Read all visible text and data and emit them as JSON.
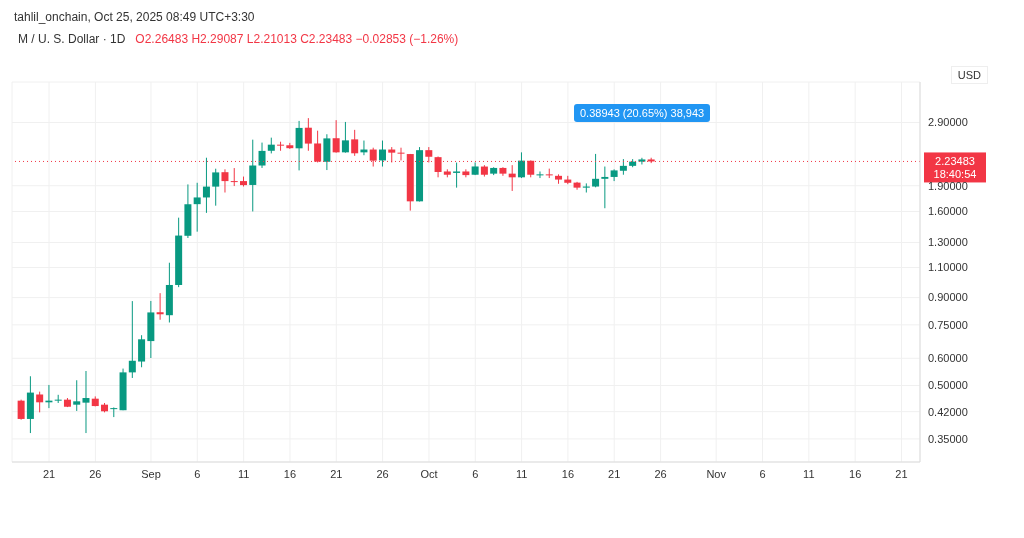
{
  "chart_data": {
    "type": "candlestick",
    "title": "M / U. S. Dollar · 1D",
    "subtitle": "O2.26483 H2.29087 L2.21013 C2.23483 −0.02853 (−1.26%)",
    "ylabel": "USD",
    "annotations": [
      "tahlil_onchain, Oct 25, 2025 08:49 UTC+3:30",
      "18:40:54",
      "0.38943 (20.65%) 38,943"
    ],
    "x": [
      "2025-08-18",
      "2025-08-19",
      "2025-08-20",
      "2025-08-21",
      "2025-08-22",
      "2025-08-23",
      "2025-08-24",
      "2025-08-25",
      "2025-08-26",
      "2025-08-27",
      "2025-08-28",
      "2025-08-29",
      "2025-08-30",
      "2025-08-31",
      "2025-09-01",
      "2025-09-02",
      "2025-09-03",
      "2025-09-04",
      "2025-09-05",
      "2025-09-06",
      "2025-09-07",
      "2025-09-08",
      "2025-09-09",
      "2025-09-10",
      "2025-09-11",
      "2025-09-12",
      "2025-09-13",
      "2025-09-14",
      "2025-09-15",
      "2025-09-16",
      "2025-09-17",
      "2025-09-18",
      "2025-09-19",
      "2025-09-20",
      "2025-09-21",
      "2025-09-22",
      "2025-09-23",
      "2025-09-24",
      "2025-09-25",
      "2025-09-26",
      "2025-09-27",
      "2025-09-28",
      "2025-09-29",
      "2025-09-30",
      "2025-10-01",
      "2025-10-02",
      "2025-10-03",
      "2025-10-04",
      "2025-10-05",
      "2025-10-06",
      "2025-10-07",
      "2025-10-08",
      "2025-10-09",
      "2025-10-10",
      "2025-10-11",
      "2025-10-12",
      "2025-10-13",
      "2025-10-14",
      "2025-10-15",
      "2025-10-16",
      "2025-10-17",
      "2025-10-18",
      "2025-10-19",
      "2025-10-20",
      "2025-10-21",
      "2025-10-22",
      "2025-10-23",
      "2025-10-24",
      "2025-10-25"
    ],
    "ohlc": [
      [
        0.452,
        0.455,
        0.398,
        0.4
      ],
      [
        0.4,
        0.532,
        0.364,
        0.477
      ],
      [
        0.471,
        0.48,
        0.418,
        0.447
      ],
      [
        0.447,
        0.502,
        0.43,
        0.452
      ],
      [
        0.452,
        0.47,
        0.445,
        0.455
      ],
      [
        0.455,
        0.46,
        0.433,
        0.434
      ],
      [
        0.44,
        0.518,
        0.422,
        0.45
      ],
      [
        0.446,
        0.551,
        0.364,
        0.46
      ],
      [
        0.458,
        0.465,
        0.435,
        0.436
      ],
      [
        0.44,
        0.445,
        0.418,
        0.421
      ],
      [
        0.428,
        0.432,
        0.405,
        0.43
      ],
      [
        0.424,
        0.56,
        0.424,
        0.546
      ],
      [
        0.546,
        0.879,
        0.526,
        0.59
      ],
      [
        0.587,
        0.7,
        0.565,
        0.681
      ],
      [
        0.673,
        0.88,
        0.601,
        0.815
      ],
      [
        0.816,
        0.927,
        0.776,
        0.805
      ],
      [
        0.8,
        1.136,
        0.762,
        0.979
      ],
      [
        0.979,
        1.535,
        0.965,
        1.362
      ],
      [
        1.36,
        1.917,
        1.34,
        1.679
      ],
      [
        1.68,
        1.938,
        1.398,
        1.757
      ],
      [
        1.757,
        2.291,
        1.585,
        1.889
      ],
      [
        1.889,
        2.129,
        1.663,
        2.077
      ],
      [
        2.08,
        2.12,
        1.816,
        1.96
      ],
      [
        1.96,
        2.138,
        1.896,
        1.955
      ],
      [
        1.96,
        2.02,
        1.89,
        1.908
      ],
      [
        1.91,
        2.585,
        1.6,
        2.175
      ],
      [
        2.175,
        2.535,
        2.14,
        2.398
      ],
      [
        2.4,
        2.62,
        2.358,
        2.5
      ],
      [
        2.5,
        2.55,
        2.4,
        2.49
      ],
      [
        2.49,
        2.53,
        2.43,
        2.442
      ],
      [
        2.44,
        2.93,
        2.105,
        2.796
      ],
      [
        2.8,
        2.985,
        2.4,
        2.518
      ],
      [
        2.52,
        2.745,
        2.22,
        2.232
      ],
      [
        2.23,
        2.68,
        2.11,
        2.607
      ],
      [
        2.61,
        2.945,
        2.37,
        2.375
      ],
      [
        2.375,
        2.91,
        2.37,
        2.573
      ],
      [
        2.59,
        2.76,
        2.32,
        2.36
      ],
      [
        2.375,
        2.57,
        2.33,
        2.42
      ],
      [
        2.42,
        2.45,
        2.16,
        2.247
      ],
      [
        2.25,
        2.57,
        2.16,
        2.42
      ],
      [
        2.42,
        2.46,
        2.22,
        2.37
      ],
      [
        2.37,
        2.45,
        2.25,
        2.36
      ],
      [
        2.348,
        2.35,
        1.609,
        1.712
      ],
      [
        1.712,
        2.46,
        1.71,
        2.41
      ],
      [
        2.41,
        2.46,
        2.22,
        2.306
      ],
      [
        2.3,
        2.31,
        2.01,
        2.083
      ],
      [
        2.09,
        2.12,
        2.01,
        2.045
      ],
      [
        2.07,
        2.218,
        1.876,
        2.09
      ],
      [
        2.09,
        2.12,
        2.01,
        2.04
      ],
      [
        2.045,
        2.22,
        2.04,
        2.161
      ],
      [
        2.16,
        2.18,
        2.02,
        2.045
      ],
      [
        2.06,
        2.15,
        2.04,
        2.14
      ],
      [
        2.14,
        2.15,
        2.03,
        2.06
      ],
      [
        2.06,
        2.18,
        1.835,
        2.01
      ],
      [
        2.01,
        2.375,
        2.0,
        2.247
      ],
      [
        2.245,
        2.25,
        2.01,
        2.045
      ],
      [
        2.04,
        2.09,
        2.0,
        2.05
      ],
      [
        2.05,
        2.13,
        2.0,
        2.04
      ],
      [
        2.03,
        2.05,
        1.925,
        1.98
      ],
      [
        1.98,
        2.03,
        1.92,
        1.938
      ],
      [
        1.94,
        1.95,
        1.85,
        1.876
      ],
      [
        1.876,
        1.93,
        1.816,
        1.89
      ],
      [
        1.89,
        2.35,
        1.88,
        1.99
      ],
      [
        1.99,
        2.16,
        1.635,
        2.015
      ],
      [
        2.015,
        2.12,
        1.96,
        2.105
      ],
      [
        2.1,
        2.27,
        2.045,
        2.17
      ],
      [
        2.17,
        2.27,
        2.15,
        2.232
      ],
      [
        2.232,
        2.29,
        2.19,
        2.265
      ],
      [
        2.26483,
        2.29087,
        2.21013,
        2.23483
      ]
    ],
    "colors": [
      "#f23645",
      "#089981",
      "#f23645",
      "#089981",
      "#089981",
      "#f23645",
      "#089981",
      "#089981",
      "#f23645",
      "#f23645",
      "#089981",
      "#089981",
      "#089981",
      "#089981",
      "#089981",
      "#f23645",
      "#089981",
      "#089981",
      "#089981",
      "#089981",
      "#089981",
      "#089981",
      "#f23645",
      "#f23645",
      "#f23645",
      "#089981",
      "#089981",
      "#089981",
      "#f23645",
      "#f23645",
      "#089981",
      "#f23645",
      "#f23645",
      "#089981",
      "#f23645",
      "#089981",
      "#f23645",
      "#089981",
      "#f23645",
      "#089981",
      "#f23645",
      "#f23645",
      "#f23645",
      "#089981",
      "#f23645",
      "#f23645",
      "#f23645",
      "#089981",
      "#f23645",
      "#089981",
      "#f23645",
      "#089981",
      "#f23645",
      "#f23645",
      "#089981",
      "#f23645",
      "#089981",
      "#f23645",
      "#f23645",
      "#f23645",
      "#f23645",
      "#089981",
      "#089981",
      "#089981",
      "#089981",
      "#089981",
      "#089981",
      "#089981",
      "#f23645"
    ],
    "log": "y",
    "ylim": [
      0.3,
      3.8
    ],
    "yticks": [
      {
        "value": 0.35,
        "label": "0.35000"
      },
      {
        "value": 0.42,
        "label": "0.42000"
      },
      {
        "value": 0.5,
        "label": "0.50000"
      },
      {
        "value": 0.6,
        "label": "0.60000"
      },
      {
        "value": 0.75,
        "label": "0.75000"
      },
      {
        "value": 0.9,
        "label": "0.90000"
      },
      {
        "value": 1.1,
        "label": "1.10000"
      },
      {
        "value": 1.3,
        "label": "1.30000"
      },
      {
        "value": 1.6,
        "label": "1.60000"
      },
      {
        "value": 1.9,
        "label": "1.90000"
      },
      {
        "value": 2.9,
        "label": "2.90000"
      }
    ],
    "xlim": [
      "2025-08-17",
      "2025-11-23"
    ],
    "xticks": [
      {
        "value": "2025-08-21",
        "label": "21"
      },
      {
        "value": "2025-08-26",
        "label": "26"
      },
      {
        "value": "2025-09-01",
        "label": "Sep"
      },
      {
        "value": "2025-09-06",
        "label": "6"
      },
      {
        "value": "2025-09-11",
        "label": "11"
      },
      {
        "value": "2025-09-16",
        "label": "16"
      },
      {
        "value": "2025-09-21",
        "label": "21"
      },
      {
        "value": "2025-09-26",
        "label": "26"
      },
      {
        "value": "2025-10-01",
        "label": "Oct"
      },
      {
        "value": "2025-10-06",
        "label": "6"
      },
      {
        "value": "2025-10-11",
        "label": "11"
      },
      {
        "value": "2025-10-16",
        "label": "16"
      },
      {
        "value": "2025-10-21",
        "label": "21"
      },
      {
        "value": "2025-10-26",
        "label": "26"
      },
      {
        "value": "2025-11-01",
        "label": "Nov"
      },
      {
        "value": "2025-11-06",
        "label": "6"
      },
      {
        "value": "2025-11-11",
        "label": "11"
      },
      {
        "value": "2025-11-16",
        "label": "16"
      },
      {
        "value": "2025-11-21",
        "label": "21"
      }
    ],
    "ref_lines": [
      {
        "axis": "y",
        "value": 2.23483,
        "label": "2.23483",
        "color": "#f23645",
        "line_style": "dotted"
      }
    ],
    "grid": true
  }
}
